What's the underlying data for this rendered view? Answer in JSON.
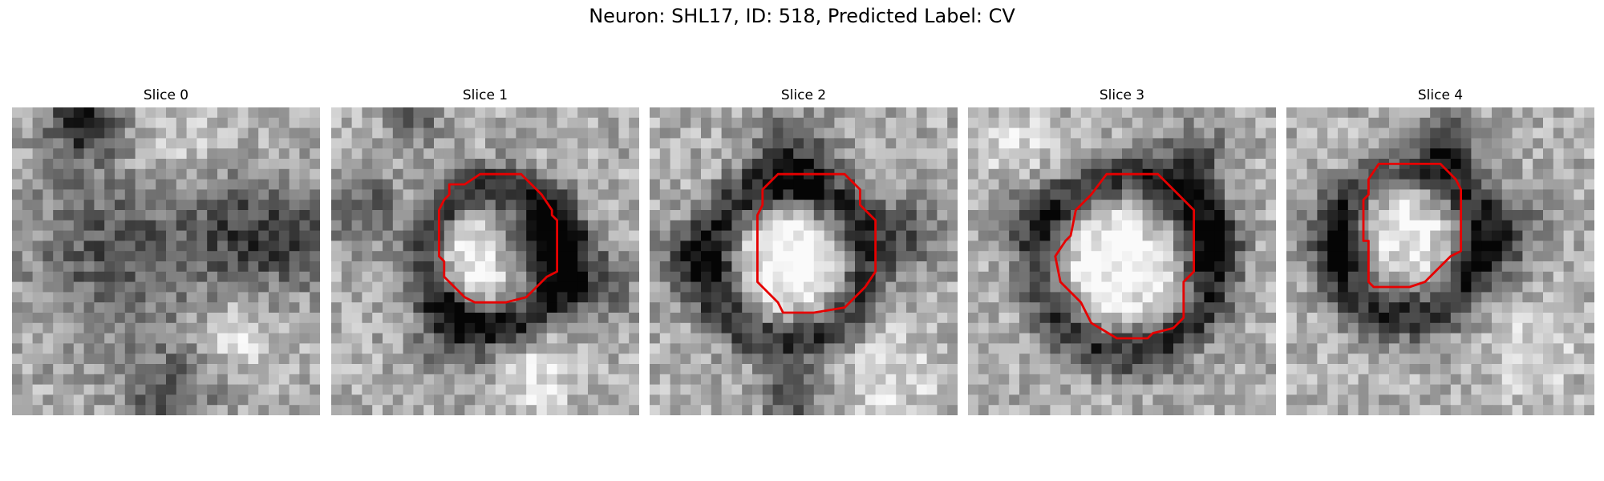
{
  "figure": {
    "title": "Neuron: SHL17, ID: 518, Predicted Label: CV"
  },
  "contour_color": "#e60000",
  "slices": [
    {
      "title": "Slice 0",
      "has_contour": false
    },
    {
      "title": "Slice 1",
      "has_contour": true
    },
    {
      "title": "Slice 2",
      "has_contour": true
    },
    {
      "title": "Slice 3",
      "has_contour": true
    },
    {
      "title": "Slice 4",
      "has_contour": true
    }
  ]
}
